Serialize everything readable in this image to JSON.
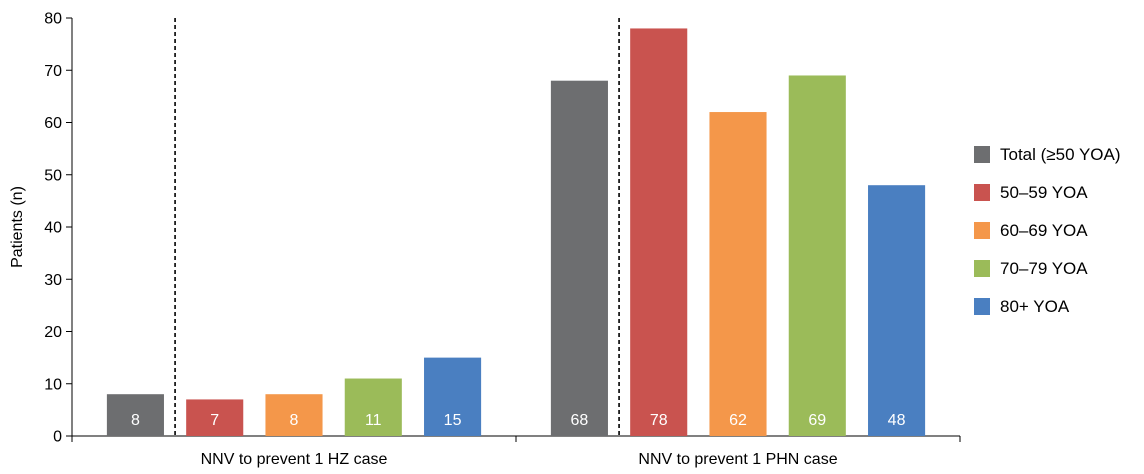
{
  "chart_data": {
    "type": "bar",
    "ylabel": "Patients (n)",
    "ylim": [
      0,
      80
    ],
    "yticks": [
      0,
      10,
      20,
      30,
      40,
      50,
      60,
      70,
      80
    ],
    "categories": [
      "NNV to prevent 1 HZ case",
      "NNV to prevent 1 PHN case"
    ],
    "series": [
      {
        "name": "Total (≥50 YOA)",
        "color": "#6d6e70",
        "values": [
          8,
          68
        ]
      },
      {
        "name": "50–59 YOA",
        "color": "#c9534f",
        "values": [
          7,
          78
        ]
      },
      {
        "name": "60–69 YOA",
        "color": "#f4974a",
        "values": [
          8,
          62
        ]
      },
      {
        "name": "70–79 YOA",
        "color": "#9bbb59",
        "values": [
          11,
          69
        ]
      },
      {
        "name": "80+ YOA",
        "color": "#4a7fc1",
        "values": [
          15,
          48
        ]
      }
    ],
    "legend_position": "right",
    "reference_lines": "dashed vertical line between Total and age-group bars in each category",
    "grid": false
  }
}
